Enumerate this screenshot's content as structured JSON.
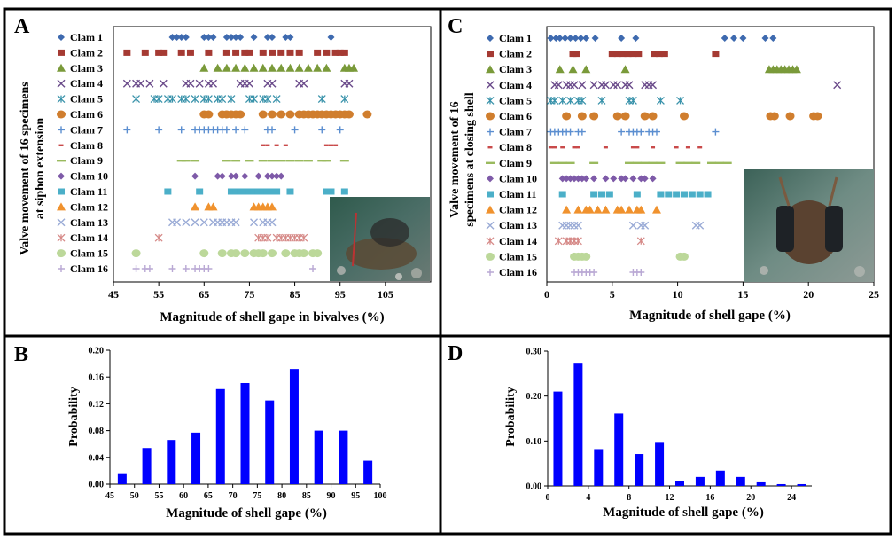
{
  "panels": {
    "a": "A",
    "b": "B",
    "c": "C",
    "d": "D"
  },
  "legend_labels": [
    "Clam 1",
    "Clam 2",
    "Clam 3",
    "Clam 4",
    "Clam 5",
    "Clam 6",
    "Clam 7",
    "Clam 8",
    "Clam 9",
    "Clam 10",
    "Clam 11",
    "Clam 12",
    "Clam 13",
    "Clam 14",
    "Clam 15",
    "Clam 16"
  ],
  "clam_colors": [
    "#3e6aaf",
    "#a53a33",
    "#7a9a3a",
    "#6a4a8a",
    "#3a93ab",
    "#d07e2e",
    "#5b8ed0",
    "#c94a4a",
    "#9aba5e",
    "#7e5aa8",
    "#4bafc8",
    "#f0922e",
    "#9aabd6",
    "#d68a88",
    "#bcd89a",
    "#b9a8d4"
  ],
  "clam_markers": [
    "diamond",
    "square",
    "triangle",
    "x",
    "asterisk",
    "circle",
    "plus",
    "dash",
    "longdash",
    "diamond",
    "square",
    "triangle",
    "x",
    "asterisk",
    "circle",
    "plus"
  ],
  "chart_data": [
    {
      "type": "scatter",
      "panel": "A",
      "title": "",
      "xlabel": "Magnitude of shell gape in bivalves (%)",
      "ylabel_lines": [
        "Valve movement  of 16 specimens",
        "at siphon extension"
      ],
      "xlim": [
        45,
        115
      ],
      "xticks": [
        45,
        55,
        65,
        75,
        85,
        95,
        105
      ],
      "series": [
        {
          "name": "Clam 1",
          "x": [
            58,
            59,
            60,
            61,
            65,
            66,
            67,
            70,
            71,
            72,
            73,
            76,
            79,
            80,
            83,
            84,
            93
          ]
        },
        {
          "name": "Clam 2",
          "x": [
            48,
            52,
            55,
            56,
            60,
            62,
            66,
            70,
            72,
            74,
            75,
            78,
            80,
            82,
            84,
            86,
            90,
            92,
            94,
            95,
            96
          ]
        },
        {
          "name": "Clam 3",
          "x": [
            65,
            68,
            70,
            72,
            74,
            76,
            78,
            80,
            82,
            84,
            86,
            88,
            90,
            92,
            96,
            97,
            98
          ]
        },
        {
          "name": "Clam 4",
          "x": [
            48,
            50,
            51,
            53,
            56,
            61,
            62,
            64,
            66,
            67,
            73,
            74,
            75,
            79,
            80,
            86,
            87,
            96,
            97
          ]
        },
        {
          "name": "Clam 5",
          "x": [
            50,
            54,
            55,
            57,
            58,
            60,
            61,
            63,
            65,
            66,
            68,
            69,
            71,
            75,
            76,
            78,
            79,
            81,
            91,
            96
          ]
        },
        {
          "name": "Clam 6",
          "x": [
            65,
            66,
            69,
            70,
            71,
            72,
            73,
            78,
            80,
            82,
            84,
            86,
            87,
            88,
            89,
            90,
            91,
            92,
            93,
            94,
            95,
            96,
            97,
            101
          ]
        },
        {
          "name": "Clam 7",
          "x": [
            48,
            55,
            60,
            63,
            64,
            65,
            66,
            67,
            68,
            69,
            70,
            72,
            74,
            79,
            80,
            85,
            91,
            95
          ]
        },
        {
          "name": "Clam 8",
          "x": [
            78,
            79,
            81,
            83,
            92,
            93,
            94
          ]
        },
        {
          "name": "Clam 9",
          "x": [
            60,
            61,
            63,
            70,
            72,
            75,
            78,
            80,
            82,
            84,
            86,
            88,
            91,
            92,
            96
          ]
        },
        {
          "name": "Clam 10",
          "x": [
            63,
            68,
            69,
            71,
            72,
            74,
            77,
            79,
            80,
            81,
            82
          ]
        },
        {
          "name": "Clam 11",
          "x": [
            57,
            64,
            71,
            72,
            73,
            74,
            75,
            76,
            77,
            78,
            79,
            80,
            81,
            84,
            92,
            93,
            96
          ]
        },
        {
          "name": "Clam 12",
          "x": [
            63,
            66,
            67,
            76,
            77,
            78,
            79,
            80
          ]
        },
        {
          "name": "Clam 13",
          "x": [
            58,
            59,
            61,
            63,
            65,
            67,
            68,
            69,
            70,
            71,
            72,
            76,
            78,
            79,
            80
          ]
        },
        {
          "name": "Clam 14",
          "x": [
            55,
            77,
            78,
            79,
            81,
            82,
            83,
            84,
            85,
            86,
            87
          ]
        },
        {
          "name": "Clam 15",
          "x": [
            50,
            65,
            69,
            71,
            72,
            74,
            76,
            77,
            78,
            80,
            83,
            85,
            86,
            87,
            89,
            90
          ]
        },
        {
          "name": "Clam 16",
          "x": [
            50,
            52,
            53,
            58,
            61,
            63,
            64,
            65,
            66,
            89
          ]
        }
      ]
    },
    {
      "type": "bar",
      "panel": "B",
      "title": "",
      "xlabel": "Magnitude of shell gape (%)",
      "ylabel": "Probability",
      "xlim": [
        45,
        100
      ],
      "ylim": [
        0,
        0.2
      ],
      "xticks": [
        45,
        50,
        55,
        60,
        65,
        70,
        75,
        80,
        85,
        90,
        95,
        100
      ],
      "yticks": [
        "0.00",
        "0.04",
        "0.08",
        "0.12",
        "0.16",
        "0.20"
      ],
      "x": [
        47.5,
        52.5,
        57.5,
        62.5,
        67.5,
        72.5,
        77.5,
        82.5,
        87.5,
        92.5,
        97.5
      ],
      "values": [
        0.015,
        0.054,
        0.066,
        0.077,
        0.142,
        0.151,
        0.125,
        0.172,
        0.08,
        0.08,
        0.035
      ]
    },
    {
      "type": "scatter",
      "panel": "C",
      "title": "",
      "xlabel": "Magnitude of shell gape (%)",
      "ylabel_lines": [
        "Valve movement  of 16",
        "specimens at closing shell"
      ],
      "xlim": [
        0,
        25
      ],
      "xticks": [
        0,
        5,
        10,
        15,
        20,
        25
      ],
      "series": [
        {
          "name": "Clam 1",
          "x": [
            0.3,
            0.7,
            1.0,
            1.4,
            1.8,
            2.2,
            2.6,
            3.0,
            3.7,
            5.7,
            6.8,
            13.6,
            14.3,
            15.0,
            16.7,
            17.3
          ]
        },
        {
          "name": "Clam 2",
          "x": [
            2.0,
            2.3,
            5.0,
            5.4,
            5.8,
            6.2,
            6.6,
            7.0,
            8.2,
            8.6,
            9.0,
            12.9
          ]
        },
        {
          "name": "Clam 3",
          "x": [
            1.0,
            2.0,
            3.0,
            6.0,
            17.0,
            17.3,
            17.6,
            17.9,
            18.2,
            18.5,
            18.8,
            19.1
          ]
        },
        {
          "name": "Clam 4",
          "x": [
            0.6,
            0.9,
            1.5,
            1.8,
            2.1,
            2.7,
            3.6,
            4.2,
            4.5,
            5.1,
            5.4,
            6.0,
            6.3,
            7.5,
            7.8,
            8.1,
            22.2
          ]
        },
        {
          "name": "Clam 5",
          "x": [
            0.3,
            0.6,
            1.2,
            1.8,
            2.4,
            2.7,
            4.2,
            6.3,
            6.6,
            8.7,
            10.2
          ]
        },
        {
          "name": "Clam 6",
          "x": [
            1.5,
            2.7,
            3.6,
            5.4,
            6.0,
            7.5,
            8.1,
            10.5,
            17.1,
            17.4,
            18.6,
            20.4,
            20.7
          ]
        },
        {
          "name": "Clam 7",
          "x": [
            0.3,
            0.6,
            0.9,
            1.2,
            1.5,
            1.8,
            2.4,
            2.7,
            5.7,
            6.3,
            6.6,
            6.9,
            7.2,
            7.8,
            8.1,
            8.4,
            12.9
          ]
        },
        {
          "name": "Clam 8",
          "x": [
            0.3,
            0.6,
            1.2,
            2.1,
            2.4,
            4.5,
            6.6,
            6.9,
            8.1,
            9.9,
            10.8,
            11.7
          ]
        },
        {
          "name": "Clam 9",
          "x": [
            0.6,
            1.2,
            1.8,
            3.6,
            6.3,
            6.9,
            7.5,
            8.1,
            8.7,
            10.2,
            10.8,
            11.4,
            12.6,
            13.2,
            13.8
          ]
        },
        {
          "name": "Clam 10",
          "x": [
            1.2,
            1.5,
            1.8,
            2.1,
            2.4,
            2.7,
            3.0,
            3.6,
            4.5,
            5.1,
            5.7,
            6.0,
            6.6,
            7.2,
            7.5,
            8.1
          ]
        },
        {
          "name": "Clam 11",
          "x": [
            1.2,
            3.6,
            4.2,
            4.8,
            6.9,
            8.7,
            9.3,
            9.9,
            10.5,
            11.1,
            11.7,
            12.3
          ]
        },
        {
          "name": "Clam 12",
          "x": [
            1.5,
            2.4,
            3.0,
            3.3,
            3.9,
            4.5,
            5.4,
            5.7,
            6.3,
            6.9,
            7.2,
            8.4
          ]
        },
        {
          "name": "Clam 13",
          "x": [
            1.2,
            1.5,
            1.8,
            2.1,
            2.4,
            6.6,
            7.2,
            7.5,
            11.4,
            11.7
          ]
        },
        {
          "name": "Clam 14",
          "x": [
            0.9,
            1.5,
            1.8,
            2.1,
            2.4,
            7.2
          ]
        },
        {
          "name": "Clam 15",
          "x": [
            2.1,
            2.4,
            2.7,
            3.0,
            10.2,
            10.5
          ]
        },
        {
          "name": "Clam 16",
          "x": [
            2.1,
            2.4,
            2.7,
            3.0,
            3.3,
            3.6,
            6.6,
            6.9,
            7.2
          ]
        }
      ]
    },
    {
      "type": "bar",
      "panel": "D",
      "title": "",
      "xlabel": "Magnitude of shell gape (%)",
      "ylabel": "Probability",
      "xlim": [
        0,
        26
      ],
      "ylim": [
        0,
        0.3
      ],
      "xticks": [
        0,
        4,
        8,
        12,
        16,
        20,
        24
      ],
      "yticks": [
        "0.00",
        "0.10",
        "0.20",
        "0.30"
      ],
      "x": [
        1,
        3,
        5,
        7,
        9,
        11,
        13,
        15,
        17,
        19,
        21,
        23,
        25
      ],
      "values": [
        0.21,
        0.274,
        0.082,
        0.161,
        0.071,
        0.096,
        0.01,
        0.02,
        0.034,
        0.02,
        0.008,
        0.004,
        0.004
      ]
    }
  ]
}
